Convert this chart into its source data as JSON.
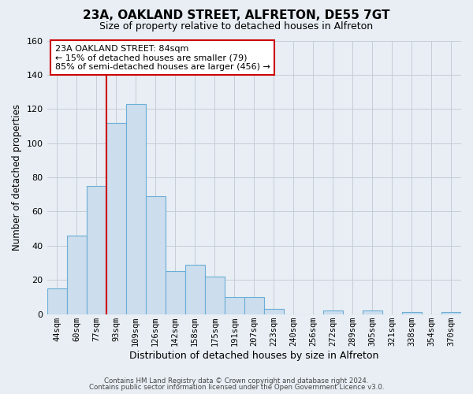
{
  "title": "23A, OAKLAND STREET, ALFRETON, DE55 7GT",
  "subtitle": "Size of property relative to detached houses in Alfreton",
  "xlabel": "Distribution of detached houses by size in Alfreton",
  "ylabel": "Number of detached properties",
  "bar_labels": [
    "44sqm",
    "60sqm",
    "77sqm",
    "93sqm",
    "109sqm",
    "126sqm",
    "142sqm",
    "158sqm",
    "175sqm",
    "191sqm",
    "207sqm",
    "223sqm",
    "240sqm",
    "256sqm",
    "272sqm",
    "289sqm",
    "305sqm",
    "321sqm",
    "338sqm",
    "354sqm",
    "370sqm"
  ],
  "bar_values": [
    15,
    46,
    75,
    112,
    123,
    69,
    25,
    29,
    22,
    10,
    10,
    3,
    0,
    0,
    2,
    0,
    2,
    0,
    1,
    0,
    1
  ],
  "bar_color": "#ccdded",
  "bar_edge_color": "#6baed6",
  "vline_color": "#cc0000",
  "annotation_text": "23A OAKLAND STREET: 84sqm\n← 15% of detached houses are smaller (79)\n85% of semi-detached houses are larger (456) →",
  "annotation_box_facecolor": "white",
  "annotation_box_edgecolor": "#cc0000",
  "ylim": [
    0,
    160
  ],
  "yticks": [
    0,
    20,
    40,
    60,
    80,
    100,
    120,
    140,
    160
  ],
  "footer1": "Contains HM Land Registry data © Crown copyright and database right 2024.",
  "footer2": "Contains public sector information licensed under the Open Government Licence v3.0.",
  "fig_bg_color": "#e8eef4",
  "plot_bg_color": "#e8eef4",
  "grid_color": "#c5cdd6",
  "title_fontsize": 11,
  "subtitle_fontsize": 9
}
